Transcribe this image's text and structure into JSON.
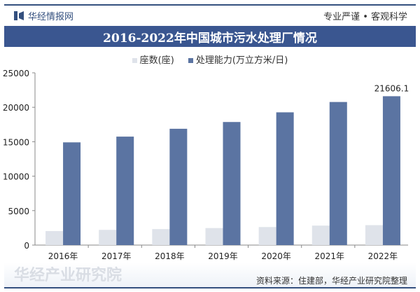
{
  "header": {
    "brand": "华经情报网",
    "slogan": "专业严谨 • 客观科学",
    "title": "2016-2022年中国城市污水处理厂情况"
  },
  "source": "资料来源：住建部，华经产业研究院整理",
  "watermark": "华经产业研究院",
  "chart_data": {
    "type": "bar",
    "title": "2016-2022年中国城市污水处理厂情况",
    "categories": [
      "2016年",
      "2017年",
      "2018年",
      "2019年",
      "2020年",
      "2021年",
      "2022年"
    ],
    "series": [
      {
        "name": "座数(座)",
        "color": "#dfe3ea",
        "values": [
          2039,
          2209,
          2321,
          2471,
          2618,
          2827,
          2894
        ]
      },
      {
        "name": "处理能力(万立方米/日)",
        "color": "#5b74a2",
        "values": [
          14910,
          15743,
          16881,
          17863,
          19267,
          20767,
          21606.1
        ]
      }
    ],
    "data_labels": [
      {
        "series": 1,
        "index": 6,
        "text": "21606.1"
      }
    ],
    "yticks": [
      "0",
      "5000",
      "10000",
      "15000",
      "20000",
      "25000"
    ],
    "ylim": [
      0,
      25000
    ],
    "grid": false,
    "legend": "top"
  }
}
